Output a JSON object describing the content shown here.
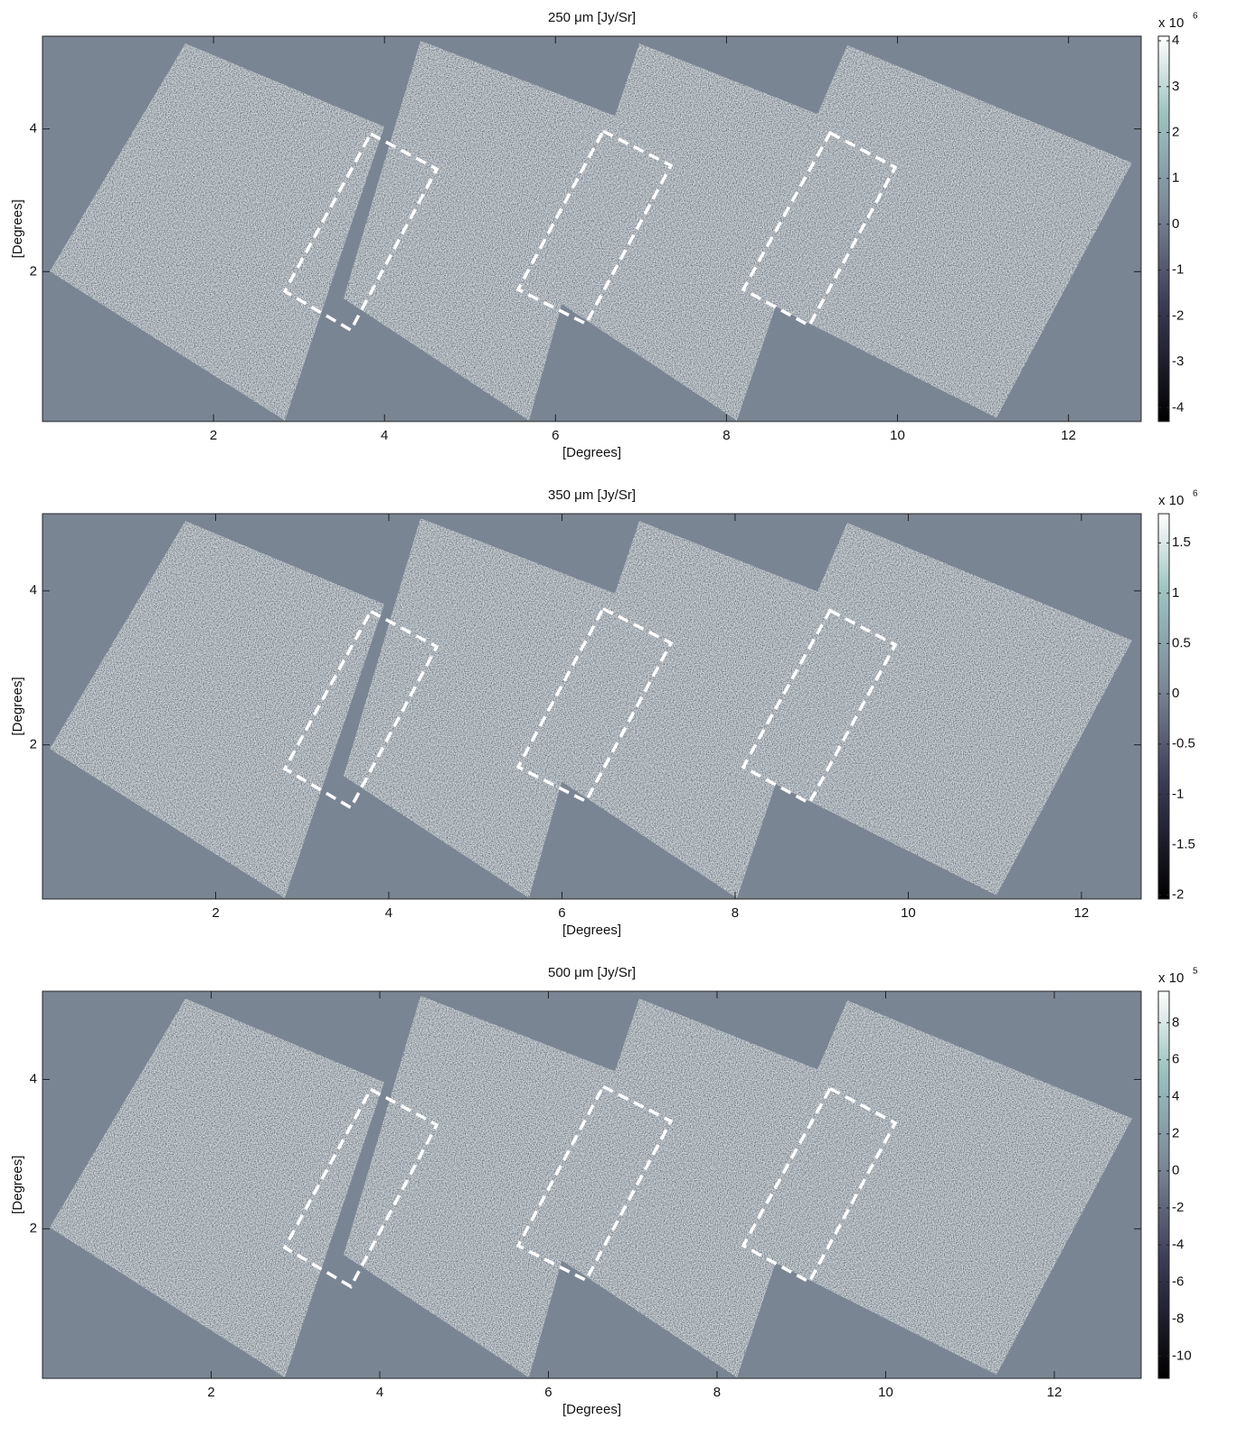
{
  "chart_data": [
    {
      "type": "image",
      "title": "250 μm  [Jy/Sr]",
      "xlabel": "[Degrees]",
      "ylabel": "[Degrees]",
      "xlim": [
        0,
        12.85
      ],
      "ylim": [
        -0.1,
        5.3
      ],
      "xticks": [
        2,
        4,
        6,
        8,
        10,
        12
      ],
      "yticks": [
        2,
        4
      ],
      "colorbar": {
        "clim": [
          -4.3,
          4.1
        ],
        "ticks": [
          -4,
          -3,
          -2,
          -1,
          0,
          1,
          2,
          3,
          4
        ],
        "multiplier": "x 10",
        "exponent": "6"
      }
    },
    {
      "type": "image",
      "title": "350 μm  [Jy/Sr]",
      "xlabel": "[Degrees]",
      "ylabel": "[Degrees]",
      "xlim": [
        0,
        12.69
      ],
      "ylim": [
        0,
        5
      ],
      "xticks": [
        2,
        4,
        6,
        8,
        10,
        12
      ],
      "yticks": [
        2,
        4
      ],
      "colorbar": {
        "clim": [
          -2.04,
          1.79
        ],
        "ticks": [
          -2,
          -1.5,
          -1,
          -0.5,
          0,
          0.5,
          1,
          1.5
        ],
        "multiplier": "x 10",
        "exponent": "6"
      }
    },
    {
      "type": "image",
      "title": "500 μm  [Jy/Sr]",
      "xlabel": "[Degrees]",
      "ylabel": "[Degrees]",
      "xlim": [
        0,
        13.03
      ],
      "ylim": [
        0,
        5.18
      ],
      "xticks": [
        2,
        4,
        6,
        8,
        10,
        12
      ],
      "yticks": [
        2,
        4
      ],
      "colorbar": {
        "clim": [
          -11.2,
          9.7
        ],
        "ticks": [
          -10,
          -8,
          -6,
          -4,
          -2,
          0,
          2,
          4,
          6,
          8
        ],
        "multiplier": "x 10",
        "exponent": "5"
      }
    }
  ]
}
